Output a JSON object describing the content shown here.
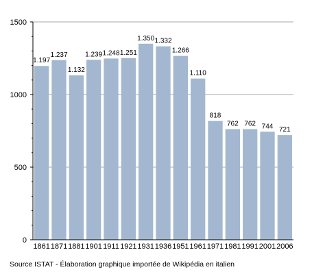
{
  "chart_data": {
    "type": "bar",
    "categories": [
      "1861",
      "1871",
      "1881",
      "1901",
      "1911",
      "1921",
      "1931",
      "1936",
      "1951",
      "1961",
      "1971",
      "1981",
      "1991",
      "2001",
      "2006"
    ],
    "values": [
      1197,
      1237,
      1132,
      1239,
      1248,
      1251,
      1350,
      1332,
      1266,
      1110,
      818,
      762,
      762,
      744,
      721
    ],
    "data_labels": [
      "1.197",
      "1.237",
      "1.132",
      "1.239",
      "1.248",
      "1.251",
      "1.350",
      "1.332",
      "1.266",
      "1.110",
      "818",
      "762",
      "762",
      "744",
      "721"
    ],
    "yticks": [
      0,
      500,
      1000,
      1500
    ],
    "ylim": [
      0,
      1500
    ],
    "grid": true,
    "bar_color": "#a3b8d0",
    "title": "",
    "xlabel": "",
    "ylabel": ""
  },
  "source_text": "Source ISTAT - Élaboration graphique importée de Wikipédia en italien"
}
